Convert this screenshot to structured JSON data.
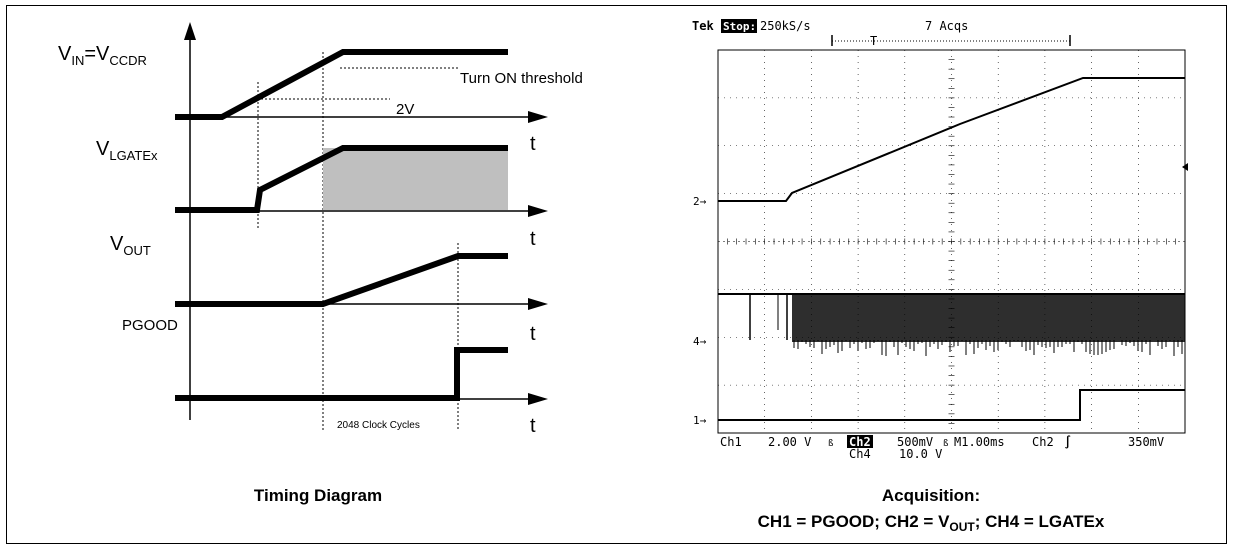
{
  "timing": {
    "vin_main": "V",
    "vin_sub1": "IN",
    "vin_eq": "=V",
    "vin_sub2": "CCDR",
    "turn_on": "Turn ON threshold",
    "two_v": "2V",
    "vlgate_main": "V",
    "vlgate_sub": "LGATEx",
    "vout_main": "V",
    "vout_sub": "OUT",
    "pgood": "PGOOD",
    "t_label": "t",
    "clock_cycles": "2048 Clock Cycles",
    "caption": "Timing Diagram"
  },
  "scope": {
    "tek": "Tek",
    "stop": "Stop:",
    "rate": "250kS/s",
    "acqs": "7 Acqs",
    "trig_t": "T",
    "marker_2": "2",
    "marker_4": "4",
    "marker_1": "1",
    "ch1": "Ch1",
    "ch1_scale": "2.00 V",
    "bw": "ß",
    "ch2": "Ch2",
    "ch2_scale": "500mV",
    "bw2": "ß",
    "time_base": "M1.00ms",
    "trig_src": "Ch2",
    "trig_edge": "∫",
    "trig_level": "350mV",
    "ch4": "Ch4",
    "ch4_scale": "10.0 V",
    "caption1": "Acquisition:",
    "caption2a": "CH1 = PGOOD; CH2 = V",
    "caption2sub": "OUT",
    "caption2b": "; CH4 = LGATEx"
  }
}
